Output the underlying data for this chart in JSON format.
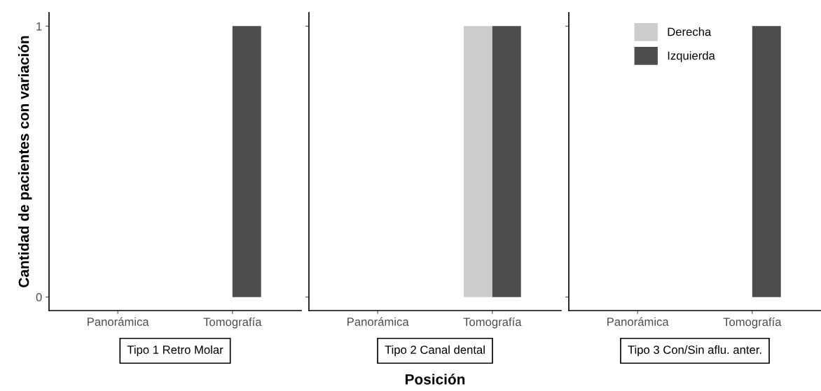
{
  "chart_data": [
    {
      "type": "bar",
      "title": "Tipo 1 Retro Molar",
      "ylabel": "Cantidad de pacientes con variación",
      "categories": [
        "Panorámica",
        "Tomografía"
      ],
      "series": [
        {
          "color": "#cccccc",
          "values": [
            0,
            0
          ]
        },
        {
          "color": "#4d4d4d",
          "values": [
            0,
            1
          ]
        }
      ],
      "ylim": [
        -0.05,
        1.05
      ],
      "yticks": [
        0,
        1
      ],
      "grid": false
    },
    {
      "type": "bar",
      "title": "Tipo 2 Canal dental",
      "xlabel": "Posición",
      "categories": [
        "Panorámica",
        "Tomografía"
      ],
      "series": [
        {
          "color": "#cccccc",
          "values": [
            0,
            1
          ]
        },
        {
          "color": "#4d4d4d",
          "values": [
            0,
            1
          ]
        }
      ],
      "ylim": [
        -0.05,
        1.05
      ],
      "yticks": [
        0,
        1
      ],
      "tick_labels": "x",
      "grid": false
    },
    {
      "type": "bar",
      "title": "Tipo 3 Con/Sin aflu. anter.",
      "categories": [
        "Panorámica",
        "Tomografía"
      ],
      "series": [
        {
          "name": "Derecha",
          "color": "#cccccc",
          "values": [
            0,
            0
          ]
        },
        {
          "name": "Izquierda",
          "color": "#4d4d4d",
          "values": [
            0,
            1
          ]
        }
      ],
      "ylim": [
        -0.05,
        1.05
      ],
      "yticks": [
        0,
        1
      ],
      "tick_labels": "x",
      "grid": false,
      "legend": "top"
    }
  ]
}
